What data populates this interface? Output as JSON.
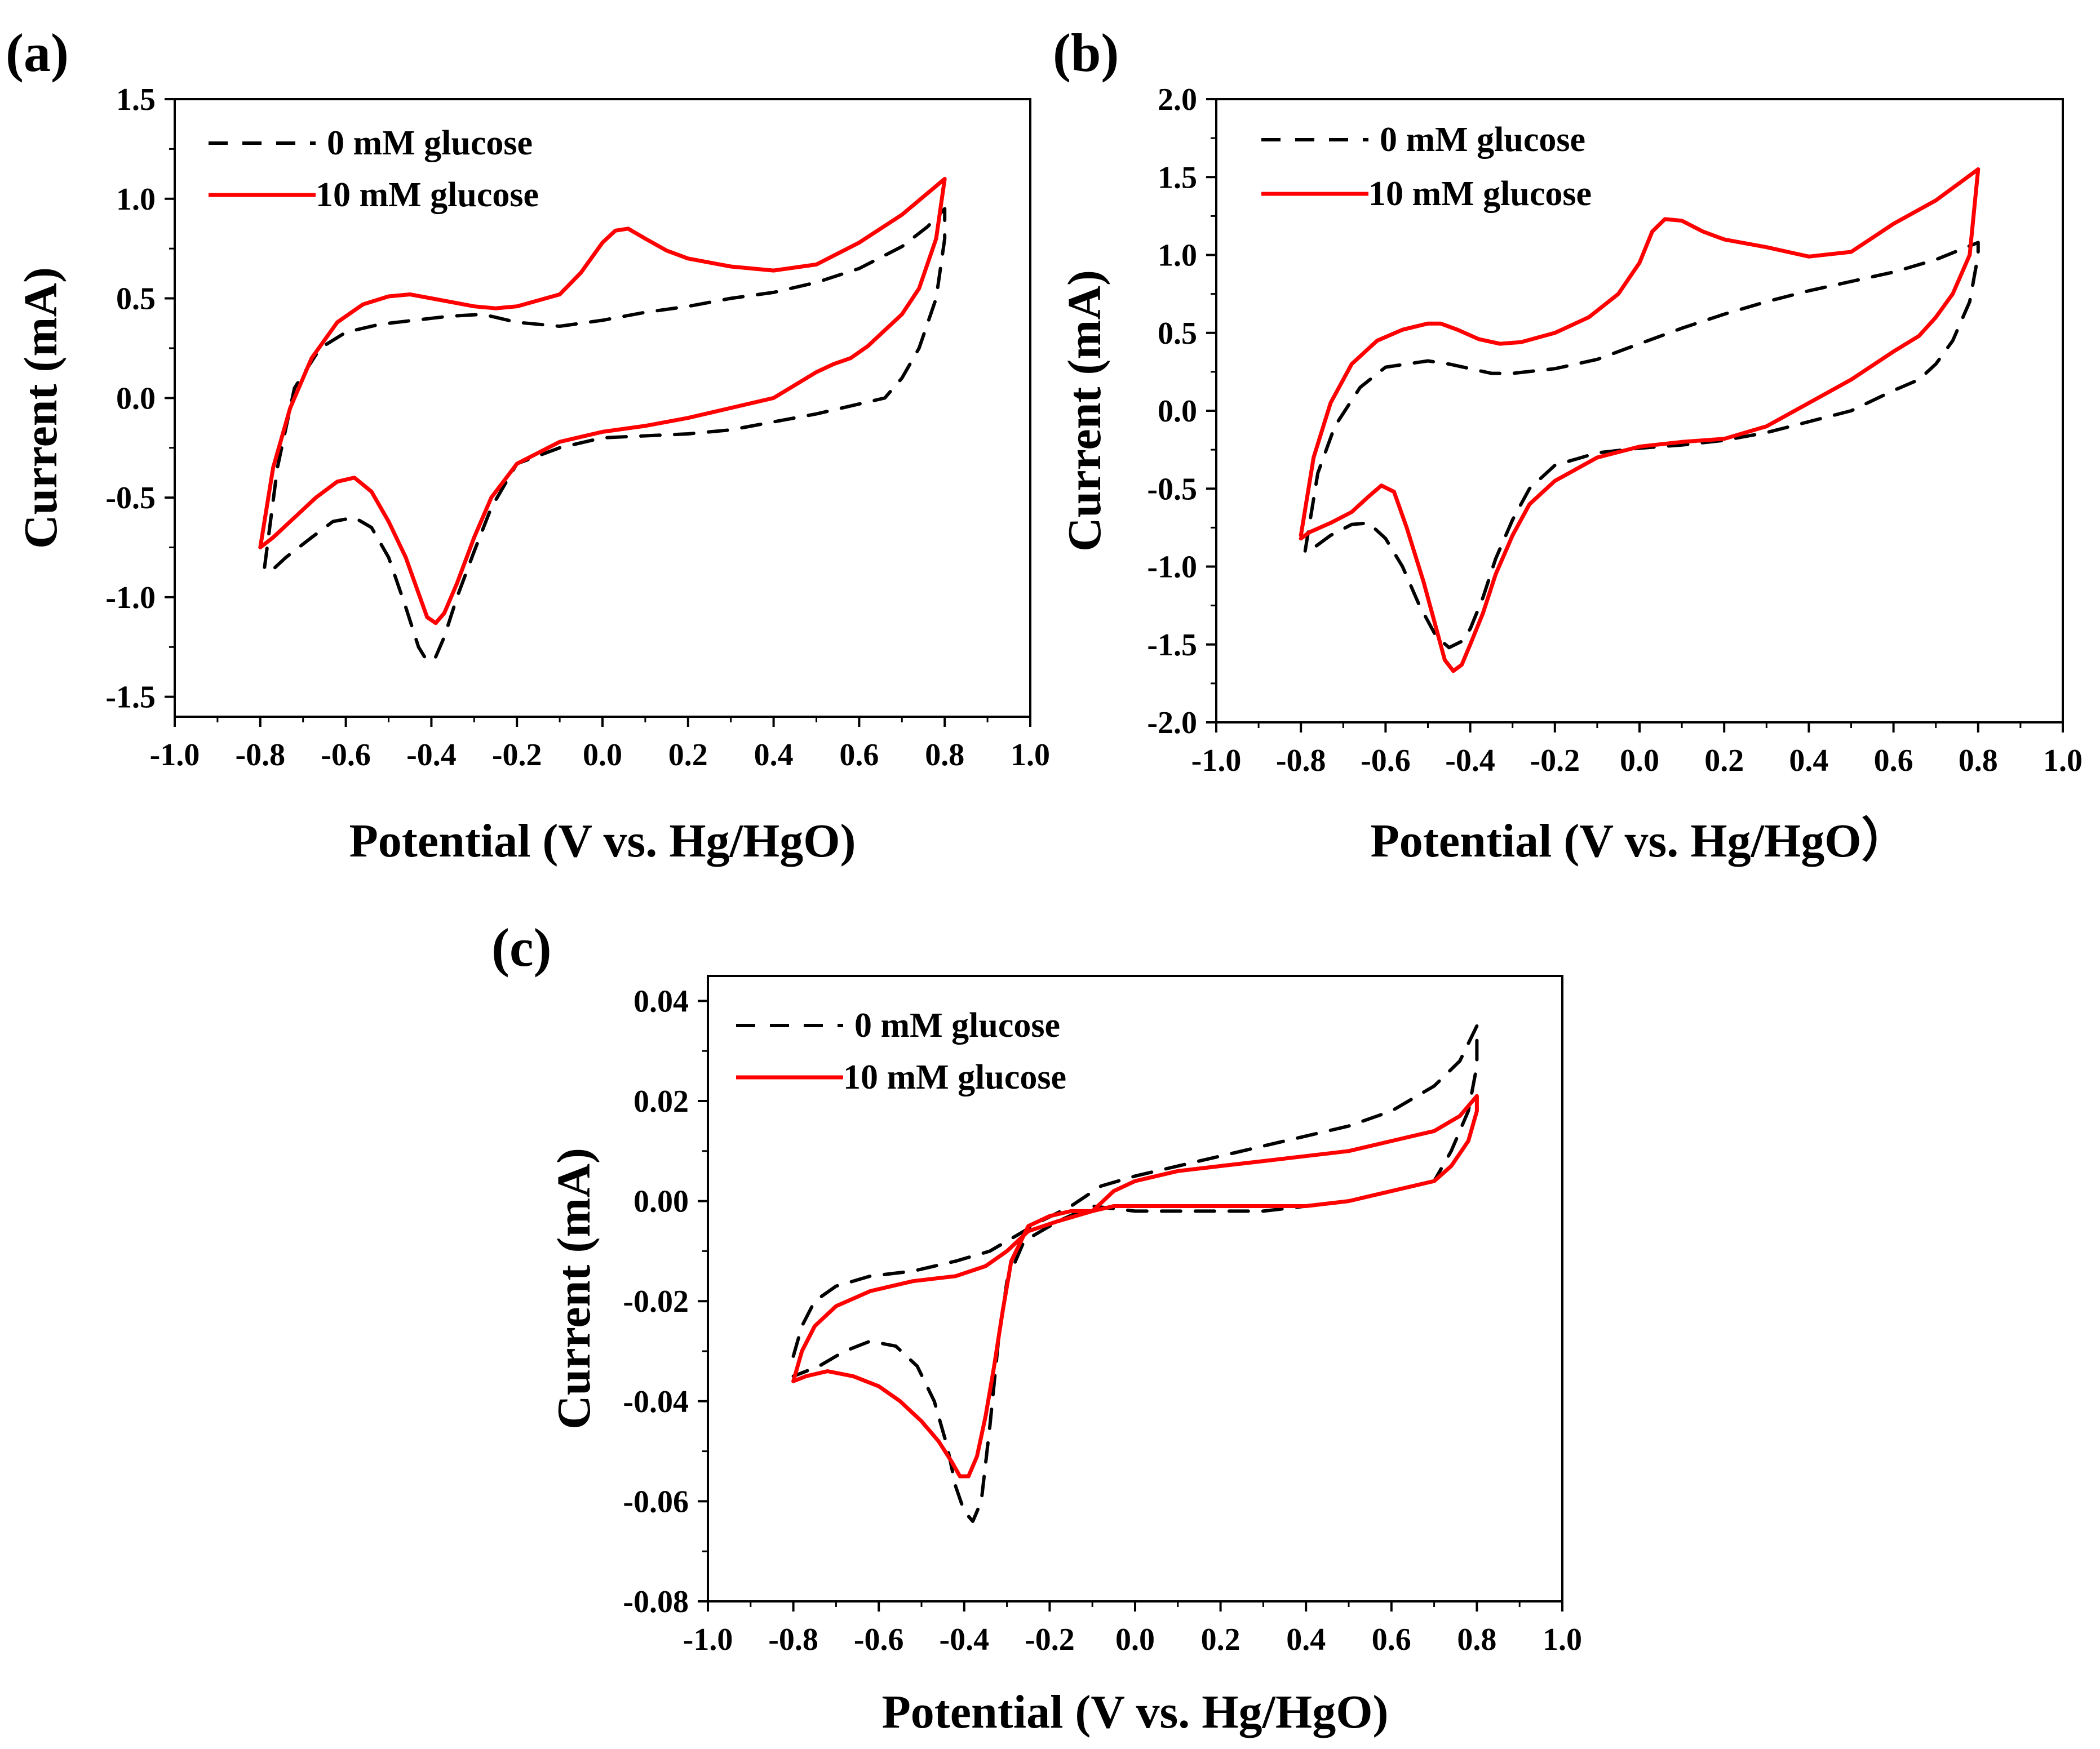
{
  "chart_data": [
    {
      "type": "line",
      "panel_label": "(a)",
      "xlabel": "Potential (V vs. Hg/HgO)",
      "ylabel": "Current (mA)",
      "xlim": [
        -1.0,
        1.0
      ],
      "ylim": [
        -1.6,
        1.5
      ],
      "xticks": [
        -1.0,
        -0.8,
        -0.6,
        -0.4,
        -0.2,
        0.0,
        0.2,
        0.4,
        0.6,
        0.8,
        1.0
      ],
      "xtick_labels": [
        "-1.0",
        "-0.8",
        "-0.6",
        "-0.4",
        "-0.2",
        "0.0",
        "0.2",
        "0.4",
        "0.6",
        "0.8",
        "1.0"
      ],
      "yticks": [
        -1.5,
        -1.0,
        -0.5,
        0.0,
        0.5,
        1.0,
        1.5
      ],
      "ytick_labels": [
        "-1.5",
        "-1.0",
        "-0.5",
        "0.0",
        "0.5",
        "1.0",
        "1.5"
      ],
      "legend_position": "top-left",
      "series": [
        {
          "name": "0 mM glucose",
          "color": "#000000",
          "dash": true,
          "x": [
            -0.79,
            -0.76,
            -0.72,
            -0.66,
            -0.6,
            -0.52,
            -0.44,
            -0.36,
            -0.28,
            -0.2,
            -0.1,
            0.0,
            0.1,
            0.2,
            0.3,
            0.4,
            0.5,
            0.6,
            0.7,
            0.76,
            0.8,
            0.8,
            0.78,
            0.74,
            0.7,
            0.66,
            0.6,
            0.5,
            0.4,
            0.3,
            0.2,
            0.1,
            0.0,
            -0.1,
            -0.2,
            -0.26,
            -0.3,
            -0.34,
            -0.37,
            -0.39,
            -0.41,
            -0.43,
            -0.46,
            -0.5,
            -0.54,
            -0.58,
            -0.63,
            -0.68,
            -0.74,
            -0.79
          ],
          "y": [
            -0.85,
            -0.35,
            0.05,
            0.25,
            0.33,
            0.37,
            0.39,
            0.41,
            0.42,
            0.38,
            0.36,
            0.39,
            0.43,
            0.46,
            0.5,
            0.53,
            0.58,
            0.65,
            0.76,
            0.86,
            0.95,
            0.8,
            0.5,
            0.25,
            0.1,
            0.0,
            -0.03,
            -0.08,
            -0.12,
            -0.16,
            -0.18,
            -0.19,
            -0.2,
            -0.25,
            -0.33,
            -0.55,
            -0.77,
            -1.0,
            -1.2,
            -1.3,
            -1.32,
            -1.25,
            -1.05,
            -0.8,
            -0.65,
            -0.6,
            -0.62,
            -0.7,
            -0.8,
            -0.9
          ]
        },
        {
          "name": "10 mM glucose",
          "color": "#ff0000",
          "dash": false,
          "x": [
            -0.8,
            -0.77,
            -0.73,
            -0.68,
            -0.62,
            -0.56,
            -0.5,
            -0.45,
            -0.4,
            -0.35,
            -0.3,
            -0.25,
            -0.2,
            -0.1,
            -0.05,
            0.0,
            0.03,
            0.06,
            0.1,
            0.15,
            0.2,
            0.3,
            0.4,
            0.5,
            0.6,
            0.7,
            0.8,
            0.78,
            0.74,
            0.7,
            0.66,
            0.62,
            0.58,
            0.54,
            0.5,
            0.4,
            0.3,
            0.2,
            0.1,
            0.0,
            -0.1,
            -0.2,
            -0.26,
            -0.3,
            -0.34,
            -0.37,
            -0.39,
            -0.41,
            -0.43,
            -0.46,
            -0.5,
            -0.54,
            -0.58,
            -0.62,
            -0.67,
            -0.72,
            -0.77,
            -0.8
          ],
          "y": [
            -0.75,
            -0.35,
            -0.05,
            0.2,
            0.38,
            0.47,
            0.51,
            0.52,
            0.5,
            0.48,
            0.46,
            0.45,
            0.46,
            0.52,
            0.63,
            0.78,
            0.84,
            0.85,
            0.8,
            0.74,
            0.7,
            0.66,
            0.64,
            0.67,
            0.78,
            0.92,
            1.1,
            0.8,
            0.55,
            0.42,
            0.34,
            0.26,
            0.2,
            0.17,
            0.13,
            0.0,
            -0.05,
            -0.1,
            -0.14,
            -0.17,
            -0.22,
            -0.33,
            -0.5,
            -0.7,
            -0.93,
            -1.08,
            -1.13,
            -1.1,
            -0.98,
            -0.8,
            -0.62,
            -0.47,
            -0.4,
            -0.42,
            -0.5,
            -0.6,
            -0.7,
            -0.75
          ]
        }
      ]
    },
    {
      "type": "line",
      "panel_label": "(b)",
      "xlabel": "Potential (V vs. Hg/HgO）",
      "ylabel": "Current (mA)",
      "xlim": [
        -1.0,
        1.0
      ],
      "ylim": [
        -2.0,
        2.0
      ],
      "xticks": [
        -1.0,
        -0.8,
        -0.6,
        -0.4,
        -0.2,
        0.0,
        0.2,
        0.4,
        0.6,
        0.8,
        1.0
      ],
      "xtick_labels": [
        "-1.0",
        "-0.8",
        "-0.6",
        "-0.4",
        "-0.2",
        "0.0",
        "0.2",
        "0.4",
        "0.6",
        "0.8",
        "1.0"
      ],
      "yticks": [
        -2.0,
        -1.5,
        -1.0,
        -0.5,
        0.0,
        0.5,
        1.0,
        1.5,
        2.0
      ],
      "ytick_labels": [
        "-2.0",
        "-1.5",
        "-1.0",
        "-0.5",
        "0.0",
        "0.5",
        "1.0",
        "1.5",
        "2.0"
      ],
      "legend_position": "top-left",
      "series": [
        {
          "name": "0 mM glucose",
          "color": "#000000",
          "dash": true,
          "x": [
            -0.79,
            -0.76,
            -0.72,
            -0.66,
            -0.6,
            -0.55,
            -0.5,
            -0.45,
            -0.4,
            -0.35,
            -0.3,
            -0.2,
            -0.1,
            0.0,
            0.1,
            0.2,
            0.3,
            0.4,
            0.5,
            0.6,
            0.7,
            0.8,
            0.8,
            0.78,
            0.74,
            0.7,
            0.66,
            0.6,
            0.5,
            0.4,
            0.3,
            0.2,
            0.1,
            0.0,
            -0.1,
            -0.2,
            -0.26,
            -0.3,
            -0.34,
            -0.37,
            -0.4,
            -0.42,
            -0.45,
            -0.48,
            -0.52,
            -0.56,
            -0.6,
            -0.64,
            -0.68,
            -0.73,
            -0.79
          ],
          "y": [
            -0.9,
            -0.4,
            -0.1,
            0.15,
            0.28,
            0.3,
            0.32,
            0.3,
            0.27,
            0.24,
            0.24,
            0.27,
            0.33,
            0.43,
            0.53,
            0.62,
            0.7,
            0.77,
            0.83,
            0.89,
            0.97,
            1.08,
            1.0,
            0.7,
            0.45,
            0.3,
            0.2,
            0.13,
            0.0,
            -0.07,
            -0.14,
            -0.19,
            -0.22,
            -0.24,
            -0.27,
            -0.35,
            -0.5,
            -0.7,
            -0.95,
            -1.2,
            -1.4,
            -1.48,
            -1.52,
            -1.45,
            -1.25,
            -1.0,
            -0.82,
            -0.72,
            -0.73,
            -0.8,
            -0.92
          ]
        },
        {
          "name": "10 mM glucose",
          "color": "#ff0000",
          "dash": false,
          "x": [
            -0.8,
            -0.77,
            -0.73,
            -0.68,
            -0.62,
            -0.56,
            -0.5,
            -0.47,
            -0.43,
            -0.38,
            -0.33,
            -0.28,
            -0.2,
            -0.12,
            -0.05,
            0.0,
            0.03,
            0.06,
            0.1,
            0.15,
            0.2,
            0.3,
            0.4,
            0.5,
            0.6,
            0.7,
            0.8,
            0.78,
            0.74,
            0.7,
            0.66,
            0.6,
            0.5,
            0.4,
            0.3,
            0.2,
            0.1,
            0.0,
            -0.1,
            -0.2,
            -0.26,
            -0.3,
            -0.34,
            -0.37,
            -0.4,
            -0.42,
            -0.44,
            -0.46,
            -0.48,
            -0.51,
            -0.55,
            -0.58,
            -0.61,
            -0.64,
            -0.68,
            -0.73,
            -0.78,
            -0.8
          ],
          "y": [
            -0.8,
            -0.3,
            0.05,
            0.3,
            0.45,
            0.52,
            0.56,
            0.56,
            0.52,
            0.46,
            0.43,
            0.44,
            0.5,
            0.6,
            0.75,
            0.95,
            1.15,
            1.23,
            1.22,
            1.15,
            1.1,
            1.05,
            0.99,
            1.02,
            1.2,
            1.35,
            1.55,
            1.0,
            0.75,
            0.6,
            0.48,
            0.38,
            0.2,
            0.05,
            -0.1,
            -0.18,
            -0.2,
            -0.23,
            -0.3,
            -0.45,
            -0.6,
            -0.8,
            -1.05,
            -1.3,
            -1.5,
            -1.63,
            -1.67,
            -1.6,
            -1.4,
            -1.1,
            -0.75,
            -0.52,
            -0.48,
            -0.55,
            -0.65,
            -0.72,
            -0.78,
            -0.82
          ]
        }
      ]
    },
    {
      "type": "line",
      "panel_label": "(c)",
      "xlabel": "Potential (V vs. Hg/HgO)",
      "ylabel": "Current (mA)",
      "xlim": [
        -1.0,
        1.0
      ],
      "ylim": [
        -0.08,
        0.045
      ],
      "xticks": [
        -1.0,
        -0.8,
        -0.6,
        -0.4,
        -0.2,
        0.0,
        0.2,
        0.4,
        0.6,
        0.8,
        1.0
      ],
      "xtick_labels": [
        "-1.0",
        "-0.8",
        "-0.6",
        "-0.4",
        "-0.2",
        "0.0",
        "0.2",
        "0.4",
        "0.6",
        "0.8",
        "1.0"
      ],
      "yticks": [
        -0.08,
        -0.06,
        -0.04,
        -0.02,
        0.0,
        0.02,
        0.04
      ],
      "ytick_labels": [
        "-0.08",
        "-0.06",
        "-0.04",
        "-0.02",
        "0.00",
        "0.02",
        "0.04"
      ],
      "legend_position": "top-left",
      "series": [
        {
          "name": "0 mM glucose",
          "color": "#000000",
          "dash": true,
          "x": [
            -0.8,
            -0.78,
            -0.75,
            -0.7,
            -0.62,
            -0.52,
            -0.42,
            -0.34,
            -0.28,
            -0.22,
            -0.15,
            -0.08,
            0.0,
            0.1,
            0.2,
            0.3,
            0.4,
            0.5,
            0.6,
            0.7,
            0.76,
            0.8,
            0.8,
            0.78,
            0.74,
            0.7,
            0.6,
            0.5,
            0.4,
            0.3,
            0.2,
            0.1,
            0.0,
            -0.1,
            -0.18,
            -0.26,
            -0.3,
            -0.32,
            -0.34,
            -0.36,
            -0.38,
            -0.4,
            -0.42,
            -0.44,
            -0.47,
            -0.51,
            -0.56,
            -0.62,
            -0.68,
            -0.74,
            -0.8
          ],
          "y": [
            -0.031,
            -0.025,
            -0.02,
            -0.017,
            -0.015,
            -0.014,
            -0.012,
            -0.01,
            -0.007,
            -0.004,
            -0.001,
            0.003,
            0.005,
            0.007,
            0.009,
            0.011,
            0.013,
            0.015,
            0.018,
            0.023,
            0.028,
            0.035,
            0.027,
            0.018,
            0.01,
            0.004,
            0.002,
            0.0,
            -0.001,
            -0.002,
            -0.002,
            -0.002,
            -0.002,
            -0.001,
            -0.004,
            -0.008,
            -0.016,
            -0.028,
            -0.045,
            -0.06,
            -0.064,
            -0.062,
            -0.057,
            -0.049,
            -0.04,
            -0.033,
            -0.029,
            -0.028,
            -0.03,
            -0.033,
            -0.035
          ]
        },
        {
          "name": "10 mM glucose",
          "color": "#ff0000",
          "dash": false,
          "x": [
            -0.8,
            -0.78,
            -0.75,
            -0.7,
            -0.62,
            -0.52,
            -0.42,
            -0.35,
            -0.3,
            -0.25,
            -0.18,
            -0.1,
            -0.05,
            0.0,
            0.1,
            0.2,
            0.3,
            0.4,
            0.5,
            0.6,
            0.7,
            0.76,
            0.8,
            0.8,
            0.78,
            0.74,
            0.7,
            0.6,
            0.5,
            0.4,
            0.3,
            0.2,
            0.1,
            0.0,
            -0.05,
            -0.1,
            -0.15,
            -0.2,
            -0.25,
            -0.29,
            -0.31,
            -0.33,
            -0.35,
            -0.37,
            -0.39,
            -0.41,
            -0.43,
            -0.46,
            -0.5,
            -0.55,
            -0.6,
            -0.66,
            -0.72,
            -0.77,
            -0.8
          ],
          "y": [
            -0.036,
            -0.03,
            -0.025,
            -0.021,
            -0.018,
            -0.016,
            -0.015,
            -0.013,
            -0.01,
            -0.006,
            -0.004,
            -0.002,
            0.002,
            0.004,
            0.006,
            0.007,
            0.008,
            0.009,
            0.01,
            0.012,
            0.014,
            0.017,
            0.021,
            0.018,
            0.012,
            0.007,
            0.004,
            0.002,
            0.0,
            -0.001,
            -0.001,
            -0.001,
            -0.001,
            -0.001,
            -0.001,
            -0.002,
            -0.002,
            -0.003,
            -0.005,
            -0.012,
            -0.022,
            -0.033,
            -0.043,
            -0.051,
            -0.055,
            -0.055,
            -0.052,
            -0.048,
            -0.044,
            -0.04,
            -0.037,
            -0.035,
            -0.034,
            -0.035,
            -0.036
          ]
        }
      ]
    }
  ]
}
